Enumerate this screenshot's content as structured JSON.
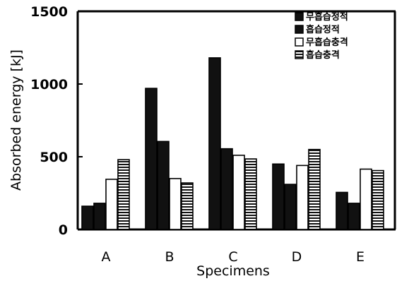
{
  "chart_data": {
    "type": "bar",
    "title": "",
    "xlabel": "Specimens",
    "ylabel": "Absorbed energy [kJ]",
    "ylim": [
      0,
      1500
    ],
    "yticks": [
      0,
      500,
      1000,
      1500
    ],
    "grid": false,
    "legend_position": "top-right",
    "categories": [
      "A",
      "B",
      "C",
      "D",
      "E"
    ],
    "series": [
      {
        "name": "무흡습정적",
        "pattern": "solid-black",
        "values": [
          160,
          970,
          1180,
          450,
          255
        ]
      },
      {
        "name": "흡습정적",
        "pattern": "solid-black",
        "values": [
          180,
          605,
          555,
          310,
          180
        ]
      },
      {
        "name": "무흡습충격",
        "pattern": "white",
        "values": [
          345,
          350,
          510,
          440,
          415
        ]
      },
      {
        "name": "흡습충격",
        "pattern": "horizontal-stripes",
        "values": [
          480,
          320,
          485,
          550,
          405
        ]
      }
    ]
  }
}
